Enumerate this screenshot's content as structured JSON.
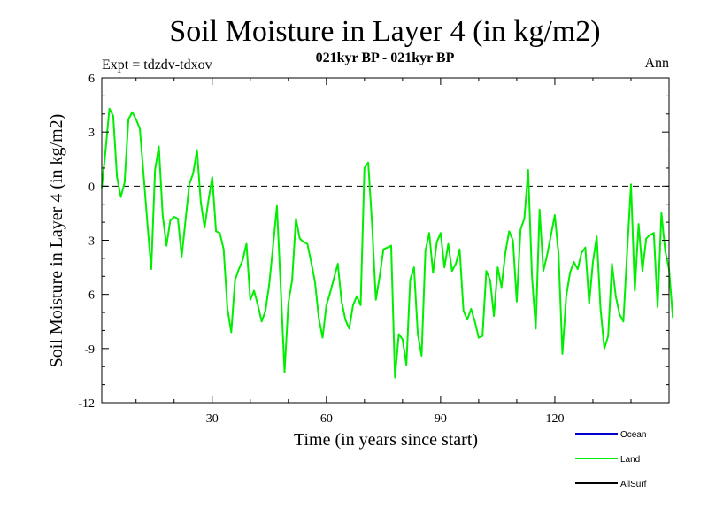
{
  "chart_data": {
    "type": "line",
    "title": "Soil Moisture in Layer 4 (in kg/m2)",
    "subtitle": "021kyr BP - 021kyr BP",
    "experiment_label": "Expt = tdzdv-tdxov",
    "period_label": "Ann",
    "xlabel": "Time (in years since start)",
    "ylabel": "Soil Moisture in Layer 4 (in kg/m2)",
    "xlim": [
      1,
      150
    ],
    "ylim": [
      -12,
      6
    ],
    "x_ticks": [
      30,
      60,
      90,
      120
    ],
    "y_ticks": [
      -12,
      -9,
      -6,
      -3,
      0,
      3,
      6
    ],
    "x_tick_labels": [
      "30",
      "60",
      "90",
      "120"
    ],
    "y_tick_labels": [
      "-12",
      "-9",
      "-6",
      "-3",
      "0",
      "3",
      "6"
    ],
    "reference_line": 0,
    "legend": [
      {
        "name": "Ocean",
        "color": "#0000cc"
      },
      {
        "name": "Land",
        "color": "#00ee00"
      },
      {
        "name": "AllSurf",
        "color": "#000000"
      }
    ],
    "series": [
      {
        "name": "Land",
        "color": "#00ee00",
        "x_start": 1,
        "x_step": 1,
        "values": [
          -0.1,
          2.0,
          4.3,
          3.9,
          0.5,
          -0.6,
          0.2,
          3.7,
          4.1,
          3.7,
          3.2,
          0.6,
          -2.1,
          -4.6,
          0.9,
          2.2,
          -1.6,
          -3.3,
          -1.9,
          -1.7,
          -1.8,
          -3.9,
          -1.9,
          0.1,
          0.7,
          2.0,
          -0.9,
          -2.3,
          -0.8,
          0.5,
          -2.5,
          -2.6,
          -3.5,
          -6.8,
          -8.1,
          -5.2,
          -4.6,
          -4.1,
          -3.2,
          -6.3,
          -5.8,
          -6.6,
          -7.5,
          -6.9,
          -5.4,
          -3.3,
          -1.1,
          -5.6,
          -10.3,
          -6.5,
          -5.2,
          -1.8,
          -2.9,
          -3.1,
          -3.2,
          -4.2,
          -5.3,
          -7.3,
          -8.4,
          -6.6,
          -5.9,
          -5.1,
          -4.3,
          -6.4,
          -7.4,
          -7.9,
          -6.6,
          -6.1,
          -6.6,
          1.0,
          1.3,
          -2.1,
          -6.3,
          -5.0,
          -3.5,
          -3.4,
          -3.3,
          -10.6,
          -8.2,
          -8.5,
          -9.9,
          -5.2,
          -4.5,
          -8.2,
          -9.4,
          -3.6,
          -2.6,
          -4.8,
          -3.1,
          -2.6,
          -4.5,
          -3.2,
          -4.7,
          -4.3,
          -3.5,
          -6.9,
          -7.4,
          -6.8,
          -7.5,
          -8.4,
          -8.3,
          -4.7,
          -5.2,
          -7.2,
          -4.5,
          -5.6,
          -3.7,
          -2.5,
          -3.0,
          -6.4,
          -2.4,
          -1.8,
          0.9,
          -5.0,
          -7.9,
          -1.3,
          -4.7,
          -3.8,
          -2.7,
          -1.6,
          -3.8,
          -9.3,
          -6.1,
          -4.8,
          -4.2,
          -4.6,
          -3.7,
          -3.4,
          -6.5,
          -4.2,
          -2.8,
          -6.8,
          -9.0,
          -8.3,
          -4.3,
          -6.1,
          -7.1,
          -7.5,
          -3.6,
          0.1,
          -5.8,
          -2.1,
          -4.7,
          -2.9,
          -2.7,
          -2.6,
          -6.7,
          -1.5,
          -3.6,
          -4.6,
          -7.3
        ]
      }
    ]
  }
}
